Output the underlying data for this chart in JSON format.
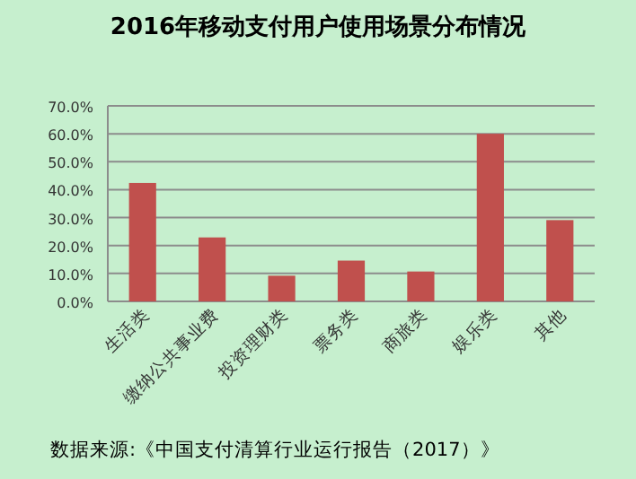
{
  "chart_data": {
    "type": "bar",
    "title": "2016年移动支付用户使用场景分布情况",
    "categories": [
      "生活类",
      "缴纳公共事业费",
      "投资理财类",
      "票务类",
      "商旅类",
      "娱乐类",
      "其他"
    ],
    "values": [
      42.4,
      22.9,
      9.2,
      14.6,
      10.7,
      60.0,
      29.1
    ],
    "color": "#c0504d",
    "ylim": [
      0,
      70
    ],
    "yticks": [
      {
        "value": 0,
        "label": "0.0%"
      },
      {
        "value": 10,
        "label": "10.0%"
      },
      {
        "value": 20,
        "label": "20.0%"
      },
      {
        "value": 30,
        "label": "30.0%"
      },
      {
        "value": 40,
        "label": "40.0%"
      },
      {
        "value": 50,
        "label": "50.0%"
      },
      {
        "value": 60,
        "label": "60.0%"
      },
      {
        "value": 70,
        "label": "70.0%"
      }
    ],
    "grid": "y",
    "annotations": [
      "数据来源:《中国支付清算行业运行报告（2017）》"
    ]
  }
}
